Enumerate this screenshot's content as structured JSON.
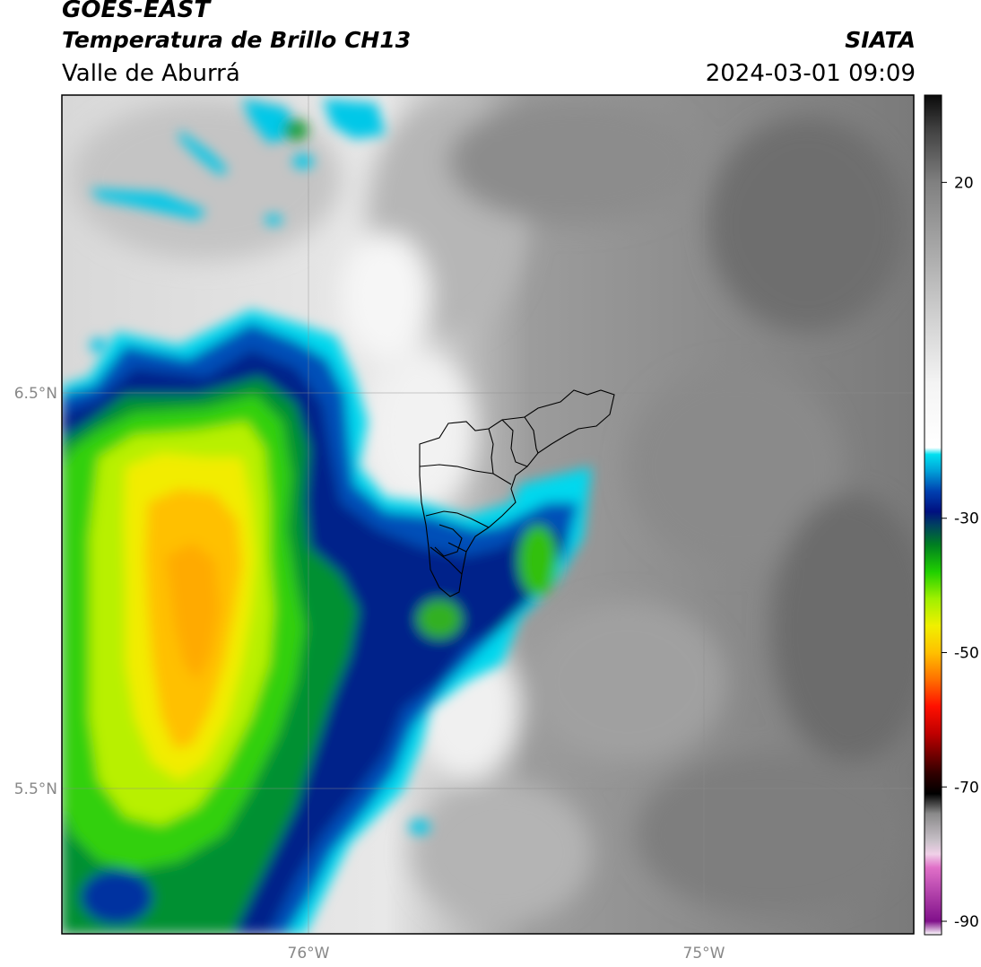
{
  "header": {
    "satellite": "GOES-EAST",
    "product": "Temperatura de Brillo CH13",
    "region": "Valle de Aburrá",
    "organization": "SIATA",
    "datetime": "2024-03-01 09:09"
  },
  "map": {
    "lat_labels": [
      "6.5°N",
      "5.5°N"
    ],
    "lon_labels": [
      "76°W",
      "75°W"
    ],
    "gridlines": true
  },
  "colorbar": {
    "tick_labels": [
      "20",
      "-30",
      "-50",
      "-70",
      "-90"
    ],
    "tick_values": [
      20,
      -30,
      -50,
      -70,
      -90
    ],
    "range": [
      -92,
      33
    ],
    "stops": [
      {
        "v": -92,
        "c": "#ffffff"
      },
      {
        "v": -90,
        "c": "#80108a"
      },
      {
        "v": -82,
        "c": "#e070c8"
      },
      {
        "v": -80,
        "c": "#f0d0e8"
      },
      {
        "v": -78,
        "c": "#c8c0c8"
      },
      {
        "v": -74,
        "c": "#8a8a8a"
      },
      {
        "v": -71,
        "c": "#000000"
      },
      {
        "v": -68,
        "c": "#300000"
      },
      {
        "v": -62,
        "c": "#c00000"
      },
      {
        "v": -58,
        "c": "#ff1000"
      },
      {
        "v": -54,
        "c": "#ff7000"
      },
      {
        "v": -50,
        "c": "#ffc000"
      },
      {
        "v": -46,
        "c": "#f0f000"
      },
      {
        "v": -42,
        "c": "#a0f000"
      },
      {
        "v": -38,
        "c": "#20d000"
      },
      {
        "v": -34,
        "c": "#008020"
      },
      {
        "v": -31,
        "c": "#004060"
      },
      {
        "v": -29,
        "c": "#001080"
      },
      {
        "v": -26,
        "c": "#0040b0"
      },
      {
        "v": -23,
        "c": "#00a0d8"
      },
      {
        "v": -20.5,
        "c": "#00e0f0"
      },
      {
        "v": -19.5,
        "c": "#ffffff"
      },
      {
        "v": -10,
        "c": "#f4f4f4"
      },
      {
        "v": 0,
        "c": "#d0d0d0"
      },
      {
        "v": 10,
        "c": "#a8a8a8"
      },
      {
        "v": 20,
        "c": "#808080"
      },
      {
        "v": 28,
        "c": "#404040"
      },
      {
        "v": 33,
        "c": "#0a0a0a"
      }
    ]
  }
}
